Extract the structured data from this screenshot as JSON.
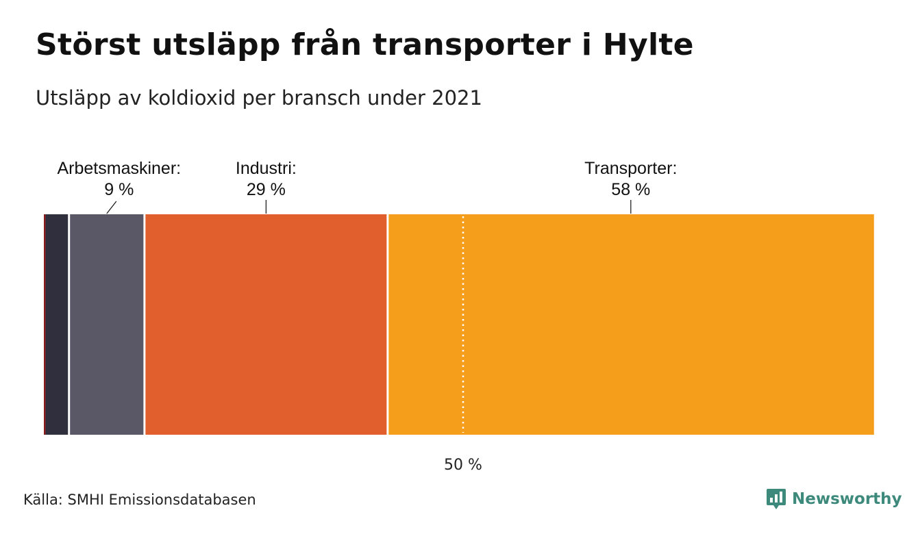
{
  "title": "Störst utsläpp från transporter i Hylte",
  "subtitle": "Utsläpp av koldioxid per bransch under 2021",
  "source": "Källa: SMHI Emissionsdatabasen",
  "brand": {
    "name": "Newsworthy",
    "logo_icon": "newsworthy-chart-logo-icon",
    "color": "#3d8a7c"
  },
  "chart_data": {
    "type": "bar",
    "orientation": "horizontal-stacked-100",
    "unit": "%",
    "segments": [
      {
        "value": 0.2,
        "color": "#8b1a1a",
        "label": null,
        "value_label": null
      },
      {
        "value": 2.8,
        "color": "#302f3d",
        "label": null,
        "value_label": null
      },
      {
        "value": 9,
        "color": "#5a5866",
        "label": "Arbetsmaskiner:",
        "value_label": "9 %"
      },
      {
        "value": 29,
        "color": "#e05f2d",
        "label": "Industri:",
        "value_label": "29 %"
      },
      {
        "value": 58,
        "color": "#f59e1b",
        "label": "Transporter:",
        "value_label": "58 %"
      }
    ],
    "reference_line": {
      "value": 50,
      "label": "50 %",
      "style": "dotted"
    },
    "xlim": [
      0,
      100
    ]
  }
}
